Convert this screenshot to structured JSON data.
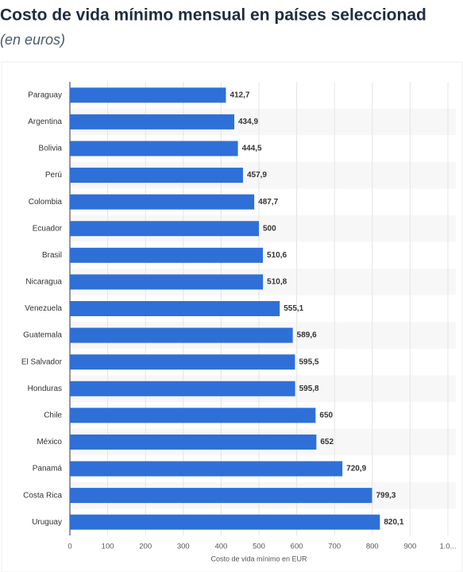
{
  "chart_data": {
    "type": "bar",
    "orientation": "horizontal",
    "title": "Costo de vida mínimo mensual en países seleccionad",
    "subtitle": "(en euros)",
    "x_axis_label": "Costo de vida mínimo en EUR",
    "categories": [
      "Paraguay",
      "Argentina",
      "Bolivia",
      "Perú",
      "Colombia",
      "Ecuador",
      "Brasil",
      "Nicaragua",
      "Venezuela",
      "Guatemala",
      "El Salvador",
      "Honduras",
      "Chile",
      "México",
      "Panamá",
      "Costa Rica",
      "Uruguay"
    ],
    "values": [
      412.7,
      434.9,
      444.5,
      457.9,
      487.7,
      500,
      510.6,
      510.8,
      555.1,
      589.6,
      595.5,
      595.8,
      650,
      652,
      720.9,
      799.3,
      820.1
    ],
    "value_labels": [
      "412,7",
      "434,9",
      "444,5",
      "457,9",
      "487,7",
      "500",
      "510,6",
      "510,8",
      "555,1",
      "589,6",
      "595,5",
      "595,8",
      "650",
      "652",
      "720,9",
      "799,3",
      "820,1"
    ],
    "color": "#2f6fd8",
    "xlim": [
      0,
      1000
    ],
    "xticks": [
      0,
      100,
      200,
      300,
      400,
      500,
      600,
      700,
      800,
      900,
      {
        "value": 1000,
        "label": "1.0..."
      }
    ],
    "grid": true
  }
}
